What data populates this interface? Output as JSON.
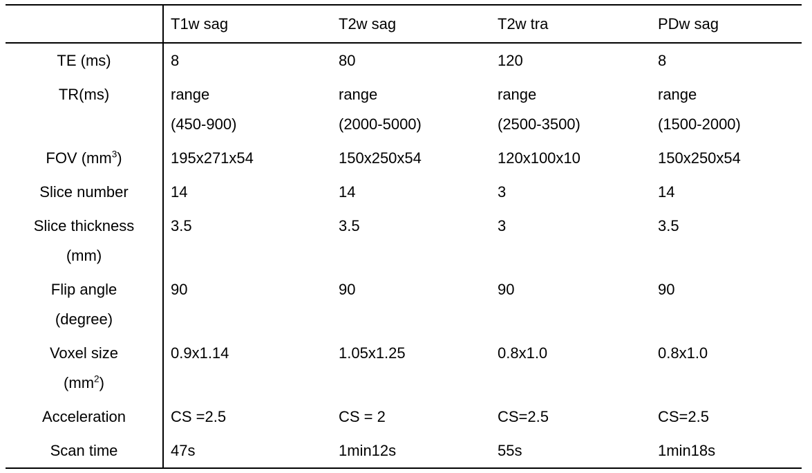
{
  "colors": {
    "background": "#ffffff",
    "text": "#000000",
    "border": "#000000"
  },
  "table": {
    "header": {
      "corner": "",
      "columns": [
        "T1w sag",
        "T2w sag",
        "T2w tra",
        "PDw sag"
      ]
    },
    "rows": [
      {
        "id": "te",
        "label_lines": [
          "TE (ms)"
        ],
        "cells": [
          [
            "8"
          ],
          [
            "80"
          ],
          [
            "120"
          ],
          [
            "8"
          ]
        ]
      },
      {
        "id": "tr",
        "label_lines": [
          "TR(ms)"
        ],
        "cells": [
          [
            "range",
            "(450-900)"
          ],
          [
            "range",
            "(2000-5000)"
          ],
          [
            "range",
            "(2500-3500)"
          ],
          [
            "range",
            "(1500-2000)"
          ]
        ]
      },
      {
        "id": "fov",
        "label_lines": [
          "FOV (mm^{3})"
        ],
        "cells": [
          [
            "195x271x54"
          ],
          [
            "150x250x54"
          ],
          [
            "120x100x10"
          ],
          [
            "150x250x54"
          ]
        ]
      },
      {
        "id": "slice-number",
        "label_lines": [
          "Slice number"
        ],
        "cells": [
          [
            "14"
          ],
          [
            "14"
          ],
          [
            "3"
          ],
          [
            "14"
          ]
        ]
      },
      {
        "id": "slice-thickness",
        "label_lines": [
          "Slice thickness",
          "(mm)"
        ],
        "cells": [
          [
            "3.5"
          ],
          [
            "3.5"
          ],
          [
            "3"
          ],
          [
            "3.5"
          ]
        ]
      },
      {
        "id": "flip-angle",
        "label_lines": [
          "Flip angle",
          "(degree)"
        ],
        "cells": [
          [
            "90"
          ],
          [
            "90"
          ],
          [
            "90"
          ],
          [
            "90"
          ]
        ]
      },
      {
        "id": "voxel-size",
        "label_lines": [
          "Voxel size",
          "(mm^{2})"
        ],
        "cells": [
          [
            "0.9x1.14"
          ],
          [
            "1.05x1.25"
          ],
          [
            "0.8x1.0"
          ],
          [
            "0.8x1.0"
          ]
        ]
      },
      {
        "id": "acceleration",
        "label_lines": [
          "Acceleration"
        ],
        "cells": [
          [
            "CS =2.5"
          ],
          [
            "CS = 2"
          ],
          [
            "CS=2.5"
          ],
          [
            "CS=2.5"
          ]
        ]
      },
      {
        "id": "scan-time",
        "label_lines": [
          "Scan time"
        ],
        "cells": [
          [
            "47s"
          ],
          [
            "1min12s"
          ],
          [
            "55s"
          ],
          [
            "1min18s"
          ]
        ]
      }
    ]
  }
}
